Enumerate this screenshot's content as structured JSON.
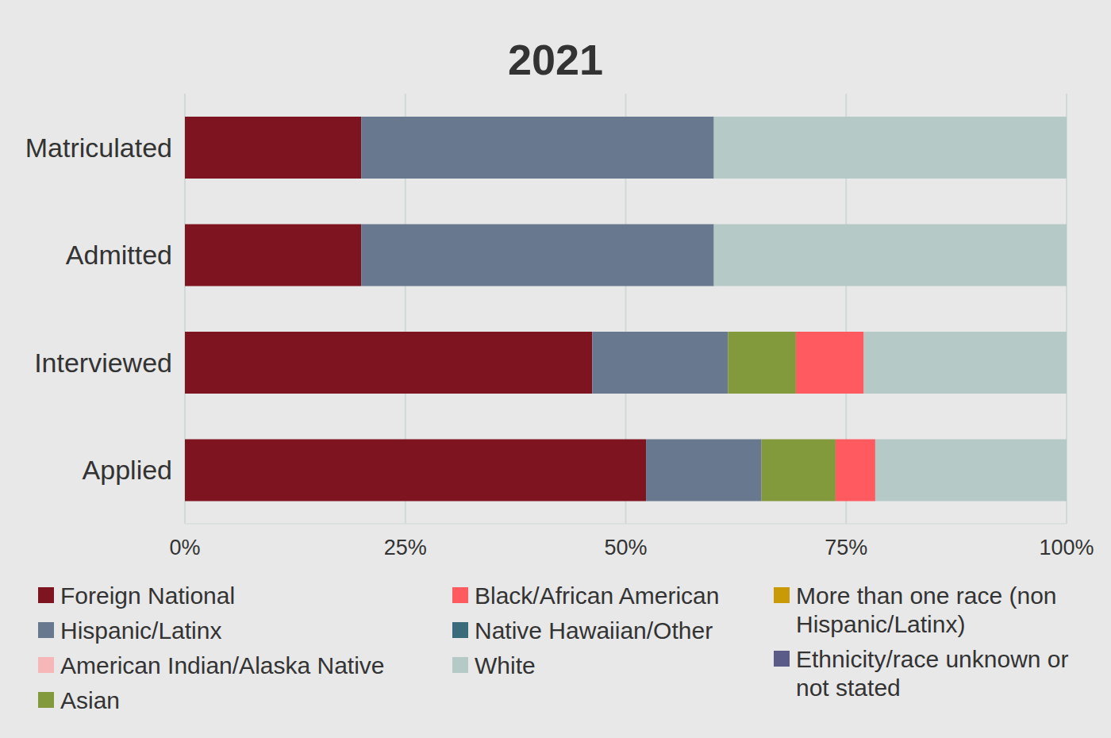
{
  "chart_data": {
    "type": "bar",
    "title": "2021",
    "orientation": "horizontal",
    "stacked": true,
    "grid": true,
    "legend": "bottom",
    "categories": [
      "Matriculated",
      "Admitted",
      "Interviewed",
      "Applied"
    ],
    "xlim": [
      0,
      100
    ],
    "xticks": [
      {
        "value": 0,
        "label": "0%"
      },
      {
        "value": 25,
        "label": "25%"
      },
      {
        "value": 50,
        "label": "50%"
      },
      {
        "value": 75,
        "label": "75%"
      },
      {
        "value": 100,
        "label": "100%"
      }
    ],
    "series": [
      {
        "name": "Foreign National",
        "color": "#7f1421",
        "values": [
          20,
          20,
          46.2,
          52.3
        ]
      },
      {
        "name": "Hispanic/Latinx",
        "color": "#68798f",
        "values": [
          40,
          40,
          15.4,
          13.1
        ]
      },
      {
        "name": "American Indian/Alaska Native",
        "color": "#f7b6b8",
        "values": [
          0,
          0,
          0,
          0
        ]
      },
      {
        "name": "Asian",
        "color": "#82993c",
        "values": [
          0,
          0,
          7.7,
          8.4
        ]
      },
      {
        "name": "Black/African American",
        "color": "#ff5a5f",
        "values": [
          0,
          0,
          7.7,
          4.5
        ]
      },
      {
        "name": "Native Hawaiian/Other",
        "color": "#3a6b7a",
        "values": [
          0,
          0,
          0,
          0
        ]
      },
      {
        "name": "White",
        "color": "#b5c9c6",
        "values": [
          40,
          40,
          23.0,
          21.7
        ]
      },
      {
        "name": "More than one race (non Hispanic/Latinx)",
        "color": "#c99a06",
        "values": [
          0,
          0,
          0,
          0
        ]
      },
      {
        "name": "Ethnicity/race unknown or not stated",
        "color": "#5b5b8a",
        "values": [
          0,
          0,
          0,
          0
        ]
      }
    ]
  }
}
